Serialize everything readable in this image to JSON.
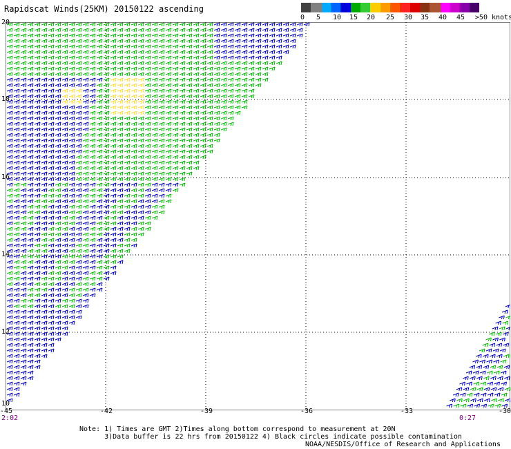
{
  "title": "Rapidscat Winds(25KM) 20150122 ascending",
  "legend": {
    "colors": [
      "#404040",
      "#808080",
      "#00aaff",
      "#0066ff",
      "#0000dd",
      "#00aa00",
      "#33cc33",
      "#ffcc00",
      "#ff9900",
      "#ff5500",
      "#ff2222",
      "#dd0000",
      "#883311",
      "#aa5533",
      "#ff00ff",
      "#cc00cc",
      "#8800aa",
      "#440066"
    ],
    "labels": [
      "0",
      "5",
      "10",
      "15",
      "20",
      "25",
      "30",
      "35",
      "40",
      "45",
      ">50 knots"
    ],
    "units": "knots"
  },
  "axes": {
    "x_ticks": [
      "-45",
      "-42",
      "-39",
      "-36",
      "-33",
      "-30"
    ],
    "y_ticks": [
      "20",
      "18",
      "16",
      "14",
      "12",
      "10"
    ]
  },
  "times": {
    "left": "2:02",
    "right": "0:27"
  },
  "notes": {
    "line1": "Note: 1) Times are GMT 2)Times along bottom correspond to measurement at 20N",
    "line2": "      3)Data buffer is 22 hrs from 20150122 4) Black circles indicate possible contamination",
    "line3": "NOAA/NESDIS/Office of Research and Applications"
  },
  "colors": {
    "blue": "#0000cc",
    "green": "#00bb00",
    "yellow": "#ffdd33",
    "grid": "#000000"
  }
}
